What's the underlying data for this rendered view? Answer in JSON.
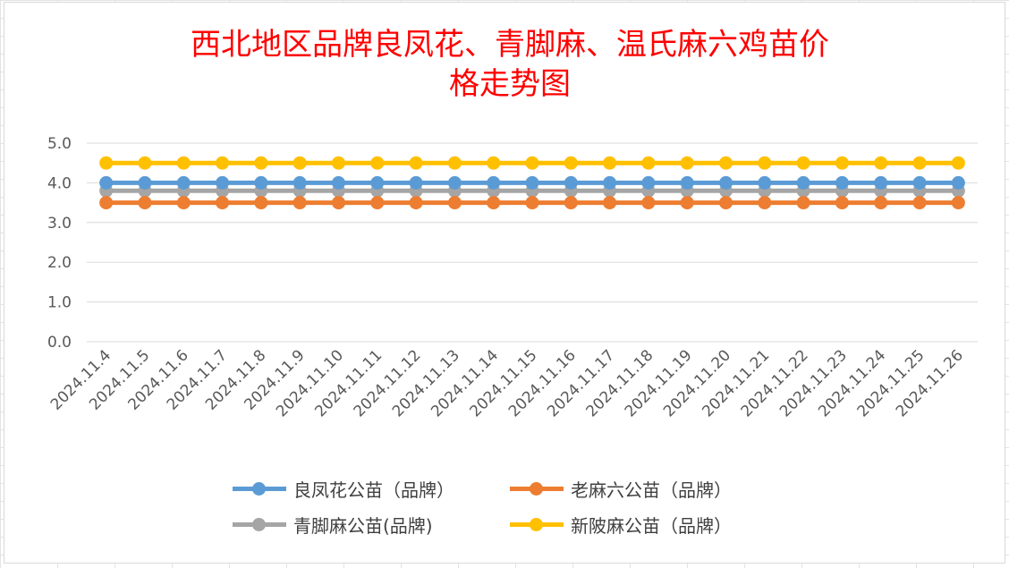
{
  "chart_data": {
    "type": "line",
    "title_lines": [
      "西北地区品牌良凤花、青脚麻、温氏麻六鸡苗价",
      "格走势图"
    ],
    "xlabel": "",
    "ylabel": "",
    "ylim": [
      0,
      5
    ],
    "yticks": [
      "0.0",
      "1.0",
      "2.0",
      "3.0",
      "4.0",
      "5.0"
    ],
    "grid": true,
    "legend_position": "bottom",
    "categories": [
      "2024.11.4",
      "2024.11.5",
      "2024.11.6",
      "2024.11.7",
      "2024.11.8",
      "2024.11.9",
      "2024.11.10",
      "2024.11.11",
      "2024.11.12",
      "2024.11.13",
      "2024.11.14",
      "2024.11.15",
      "2024.11.16",
      "2024.11.17",
      "2024.11.18",
      "2024.11.19",
      "2024.11.20",
      "2024.11.21",
      "2024.11.22",
      "2024.11.23",
      "2024.11.24",
      "2024.11.25",
      "2024.11.26"
    ],
    "series": [
      {
        "name": "良凤花公苗（品牌）",
        "color": "#5b9bd5",
        "values": [
          4.0,
          4.0,
          4.0,
          4.0,
          4.0,
          4.0,
          4.0,
          4.0,
          4.0,
          4.0,
          4.0,
          4.0,
          4.0,
          4.0,
          4.0,
          4.0,
          4.0,
          4.0,
          4.0,
          4.0,
          4.0,
          4.0,
          4.0
        ]
      },
      {
        "name": "老麻六公苗（品牌）",
        "color": "#ed7d31",
        "values": [
          3.5,
          3.5,
          3.5,
          3.5,
          3.5,
          3.5,
          3.5,
          3.5,
          3.5,
          3.5,
          3.5,
          3.5,
          3.5,
          3.5,
          3.5,
          3.5,
          3.5,
          3.5,
          3.5,
          3.5,
          3.5,
          3.5,
          3.5
        ]
      },
      {
        "name": "青脚麻公苗(品牌)",
        "color": "#a5a5a5",
        "values": [
          3.8,
          3.8,
          3.8,
          3.8,
          3.8,
          3.8,
          3.8,
          3.8,
          3.8,
          3.8,
          3.8,
          3.8,
          3.8,
          3.8,
          3.8,
          3.8,
          3.8,
          3.8,
          3.8,
          3.8,
          3.8,
          3.8,
          3.8
        ]
      },
      {
        "name": "新陂麻公苗（品牌）",
        "color": "#ffc000",
        "values": [
          4.5,
          4.5,
          4.5,
          4.5,
          4.5,
          4.5,
          4.5,
          4.5,
          4.5,
          4.5,
          4.5,
          4.5,
          4.5,
          4.5,
          4.5,
          4.5,
          4.5,
          4.5,
          4.5,
          4.5,
          4.5,
          4.5,
          4.5
        ]
      }
    ],
    "draw_order": [
      2,
      1,
      0,
      3
    ]
  }
}
